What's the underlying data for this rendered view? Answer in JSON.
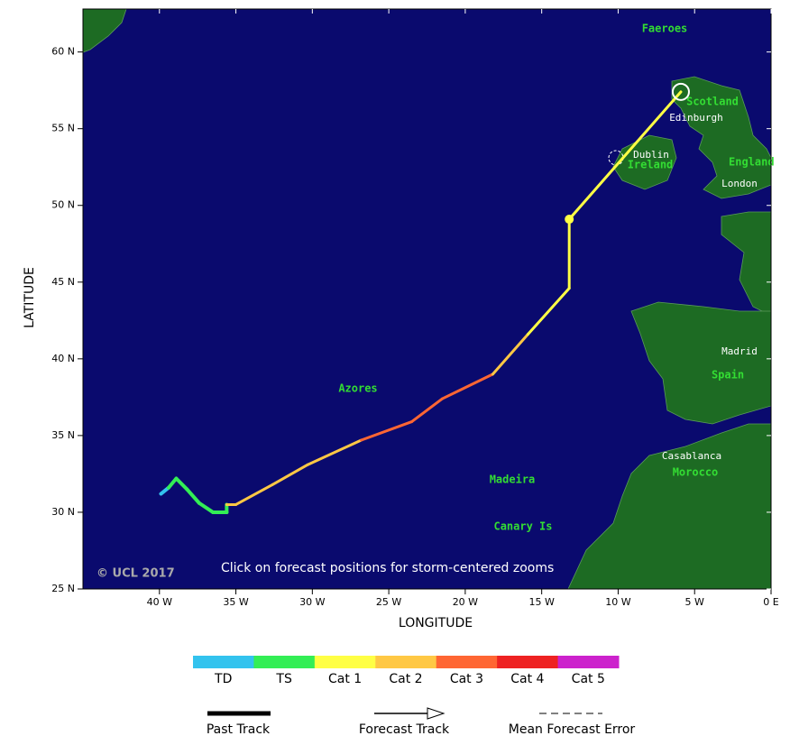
{
  "map": {
    "xlim": [
      -45,
      0
    ],
    "ylim": [
      25,
      62.8
    ],
    "xticks": [
      {
        "value": -40,
        "label": "40 W"
      },
      {
        "value": -35,
        "label": "35 W"
      },
      {
        "value": -30,
        "label": "30 W"
      },
      {
        "value": -25,
        "label": "25 W"
      },
      {
        "value": -20,
        "label": "20 W"
      },
      {
        "value": -15,
        "label": "15 W"
      },
      {
        "value": -10,
        "label": "10 W"
      },
      {
        "value": -5,
        "label": "5 W"
      },
      {
        "value": 0,
        "label": "0 E"
      }
    ],
    "yticks": [
      {
        "value": 25,
        "label": "25 N"
      },
      {
        "value": 30,
        "label": "30 N"
      },
      {
        "value": 35,
        "label": "35 N"
      },
      {
        "value": 40,
        "label": "40 N"
      },
      {
        "value": 45,
        "label": "45 N"
      },
      {
        "value": 50,
        "label": "50 N"
      },
      {
        "value": 55,
        "label": "55 N"
      },
      {
        "value": 60,
        "label": "60 N"
      }
    ],
    "x_label": "LONGITUDE",
    "y_label": "LATITUDE",
    "places": [
      "Faeroes",
      "Scotland",
      "Edinburgh",
      "Dublin",
      "Ireland",
      "England",
      "London",
      "Madrid",
      "Spain",
      "Azores",
      "Madeira",
      "Canary Is",
      "Casablanca",
      "Morocco"
    ],
    "copyright": "© UCL 2017",
    "note": "Click on forecast positions for storm-centered zooms",
    "track": {
      "lon": [
        -39.9,
        -39.4,
        -38.9,
        -38.2,
        -37.4,
        -36.5,
        -35.6,
        -35.6,
        -35.0,
        -32.6,
        -30.3,
        -26.8,
        -23.5,
        -21.5,
        -18.2,
        -15.9,
        -13.2,
        -13.2,
        -5.9
      ],
      "lat": [
        31.2,
        31.6,
        32.2,
        31.5,
        30.6,
        30.0,
        30.0,
        30.5,
        30.5,
        31.8,
        33.1,
        34.7,
        35.9,
        37.4,
        39.0,
        41.6,
        44.6,
        49.1,
        57.4
      ],
      "category": [
        "TD",
        "TS",
        "TS",
        "TS",
        "TS",
        "TS",
        "TS",
        "Cat 2",
        "Cat 2",
        "Cat 2",
        "Cat 2",
        "Cat 3",
        "Cat 3",
        "Cat 3",
        "Cat 2",
        "Cat 1",
        "Cat 1",
        "Cat 1",
        "Cat 1"
      ]
    },
    "forecast_points": {
      "lon": [
        -13.2,
        -5.9
      ],
      "lat": [
        49.1,
        57.4
      ]
    },
    "legend": {
      "categories": [
        {
          "name": "TD",
          "color": "#33c3ee"
        },
        {
          "name": "TS",
          "color": "#33ee55"
        },
        {
          "name": "Cat 1",
          "color": "#ffff44"
        },
        {
          "name": "Cat 2",
          "color": "#ffc844"
        },
        {
          "name": "Cat 3",
          "color": "#ff6633"
        },
        {
          "name": "Cat 4",
          "color": "#ee2222"
        },
        {
          "name": "Cat 5",
          "color": "#cc22cc"
        }
      ],
      "tracks": [
        "Past Track",
        "Forecast Track",
        "Mean Forecast Error"
      ]
    }
  }
}
